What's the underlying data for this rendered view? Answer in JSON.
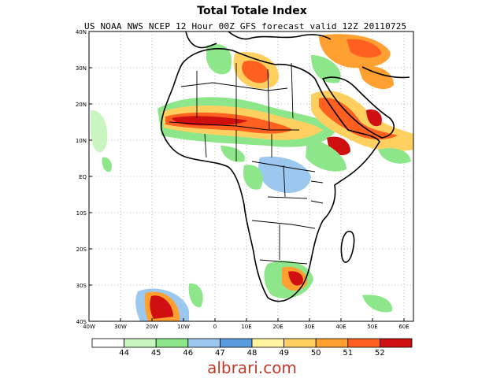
{
  "title": "Total Totale Index",
  "subtitle": "US NOAA NWS NCEP 12 Hour 00Z GFS forecast valid 12Z 20110725",
  "axes": {
    "lat_labels": [
      "40N",
      "30N",
      "20N",
      "10N",
      "EQ",
      "10S",
      "20S",
      "30S",
      "40S"
    ],
    "lon_labels": [
      "40W",
      "30W",
      "20W",
      "10W",
      "0",
      "10E",
      "20E",
      "30E",
      "40E",
      "50E",
      "60E"
    ]
  },
  "legend": {
    "labels": [
      "44",
      "45",
      "46",
      "47",
      "48",
      "49",
      "50",
      "51",
      "52"
    ],
    "colors": [
      "#ffffff",
      "#c8f5c0",
      "#8ee68a",
      "#9cc8f0",
      "#5a9be0",
      "#fff5a0",
      "#ffd060",
      "#ffa030",
      "#ff6020",
      "#d01010"
    ]
  },
  "watermark": "albrari.com"
}
